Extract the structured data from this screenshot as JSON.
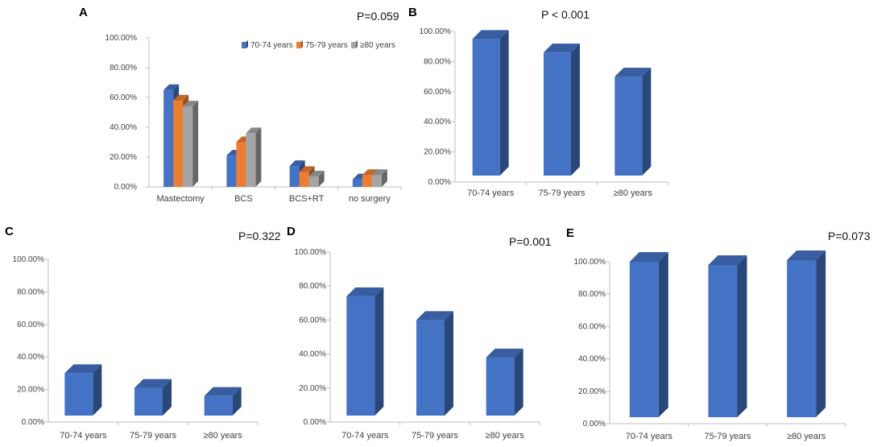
{
  "chart_data": [
    {
      "panel": "A",
      "type": "bar",
      "p_value": "P=0.059",
      "categories": [
        "Mastectomy",
        "BCS",
        "BCS+RT",
        "no surgery"
      ],
      "series": [
        {
          "name": "70-74 years",
          "values": [
            65,
            21,
            14,
            5
          ]
        },
        {
          "name": "75-79 years",
          "values": [
            58,
            30,
            10,
            8
          ]
        },
        {
          "name": "≥80 years",
          "values": [
            54,
            36,
            7,
            8
          ]
        }
      ],
      "ytick_labels": [
        "0.00%",
        "20.00%",
        "40.00%",
        "60.00%",
        "80.00%",
        "100.00%"
      ],
      "ylim": [
        0,
        100
      ],
      "colors": [
        "#4472C4",
        "#ED7D31",
        "#A5A5A5"
      ]
    },
    {
      "panel": "B",
      "type": "bar",
      "p_value": "P < 0.001",
      "categories": [
        "70-74 years",
        "75-79 years",
        "≥80 years"
      ],
      "values": [
        95,
        86,
        70
      ],
      "ytick_labels": [
        "0.00%",
        "20.00%",
        "40.00%",
        "60.00%",
        "80.00%",
        "100.00%"
      ],
      "ylim": [
        0,
        100
      ]
    },
    {
      "panel": "C",
      "type": "bar",
      "p_value": "P=0.322",
      "categories": [
        "70-74 years",
        "75-79 years",
        "≥80 years"
      ],
      "values": [
        30,
        21,
        16
      ],
      "ytick_labels": [
        "0.00%",
        "20.00%",
        "40.00%",
        "60.00%",
        "80.00%",
        "100.00%"
      ],
      "ylim": [
        0,
        100
      ]
    },
    {
      "panel": "D",
      "type": "bar",
      "p_value": "P=0.001",
      "categories": [
        "70-74 years",
        "75-79 years",
        "≥80 years"
      ],
      "values": [
        74,
        60,
        38
      ],
      "ytick_labels": [
        "0.00%",
        "20.00%",
        "40.00%",
        "60.00%",
        "80.00%",
        "100.00%"
      ],
      "ylim": [
        0,
        100
      ]
    },
    {
      "panel": "E",
      "type": "bar",
      "p_value": "P=0.073",
      "categories": [
        "70-74 years",
        "75-79 years",
        "≥80 years"
      ],
      "values": [
        100,
        98,
        101
      ],
      "ytick_labels": [
        "0.00%",
        "20.00%",
        "40.00%",
        "60.00%",
        "80.00%",
        "100.00%"
      ],
      "ylim": [
        0,
        100
      ]
    }
  ],
  "bar_color": "#4472C4",
  "axis_color": "#BFBFBF"
}
